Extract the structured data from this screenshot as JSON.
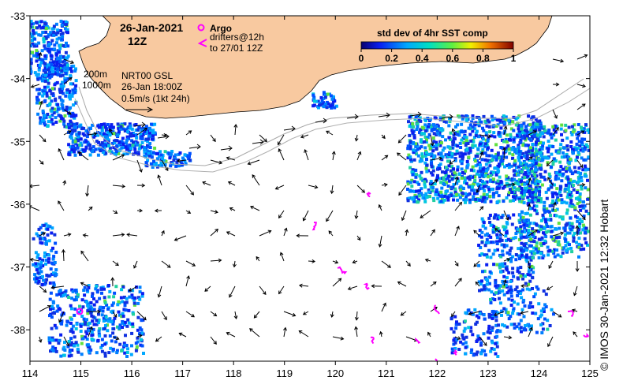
{
  "map": {
    "date_title": "26-Jan-2021",
    "time_title": "12Z",
    "x_ticks": [
      114,
      115,
      116,
      117,
      118,
      119,
      120,
      121,
      122,
      123,
      124,
      125
    ],
    "y_ticks": [
      -33,
      -34,
      -35,
      -36,
      -37,
      -38
    ],
    "lon_range": [
      114,
      125
    ],
    "lat_range": [
      -38.5,
      -33
    ]
  },
  "legend": {
    "argo_label": "Argo",
    "drifters_label": "drifters@12h",
    "drifters_label2": "to 27/01 12Z",
    "depth_200": "200m",
    "depth_1000": "1000m",
    "current_source": "NRT00 GSL",
    "current_time": "26-Jan 18:00Z",
    "current_scale": "0.5m/s (1kt 24h)"
  },
  "colorbar": {
    "title": "std dev of 4hr SST comp",
    "ticks": [
      "0",
      "0.2",
      "0.4",
      "0.6",
      "0.8",
      "1"
    ]
  },
  "credit": "© IMOS 30-Jan-2021 12:32 Hobart",
  "colors": {
    "land": "#f8c9a0",
    "sst_low": "#1a2fd0",
    "sst_mid": "#00b0d0",
    "sst_high": "#40d040",
    "argo": "#ff00ff",
    "drifter": "#ff00ff"
  }
}
